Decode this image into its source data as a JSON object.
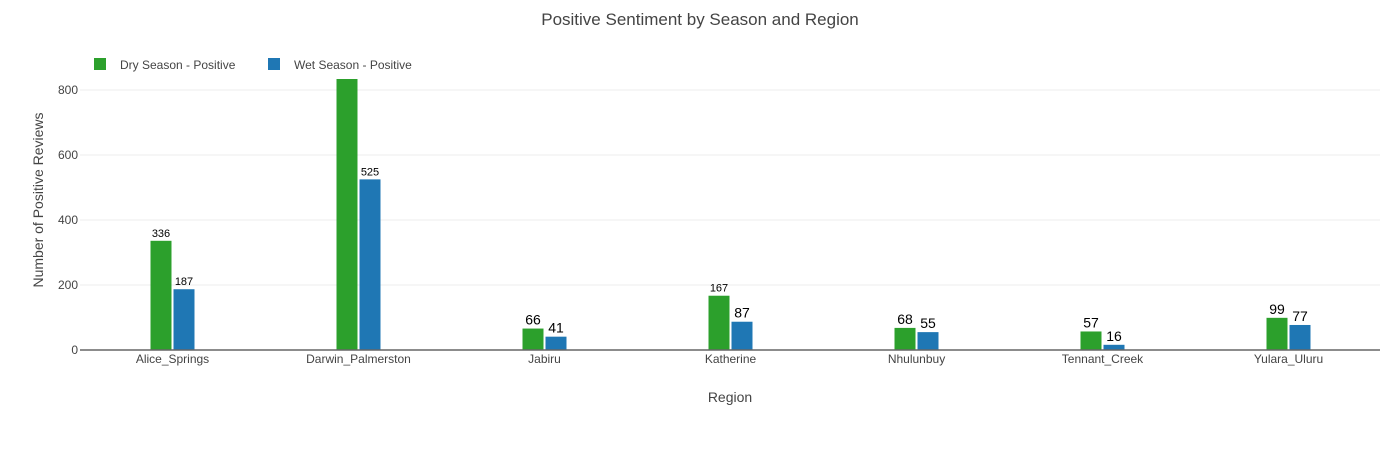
{
  "chart_data": {
    "type": "bar",
    "title": "Positive Sentiment by Season and Region",
    "xlabel": "Region",
    "ylabel": "Number of Positive Reviews",
    "categories": [
      "Alice_Springs",
      "Darwin_Palmerston",
      "Jabiru",
      "Katherine",
      "Nhulunbuy",
      "Tennant_Creek",
      "Yulara_Uluru"
    ],
    "series": [
      {
        "name": "Dry Season - Positive",
        "color": "#2ca02c",
        "values": [
          336,
          836,
          66,
          167,
          68,
          57,
          99
        ]
      },
      {
        "name": "Wet Season - Positive",
        "color": "#1f77b4",
        "values": [
          187,
          525,
          41,
          87,
          55,
          16,
          77
        ]
      }
    ],
    "ylim": [
      0,
      800
    ],
    "yticks": [
      0,
      200,
      400,
      600,
      800
    ],
    "grid": true,
    "legend": "top-left"
  }
}
